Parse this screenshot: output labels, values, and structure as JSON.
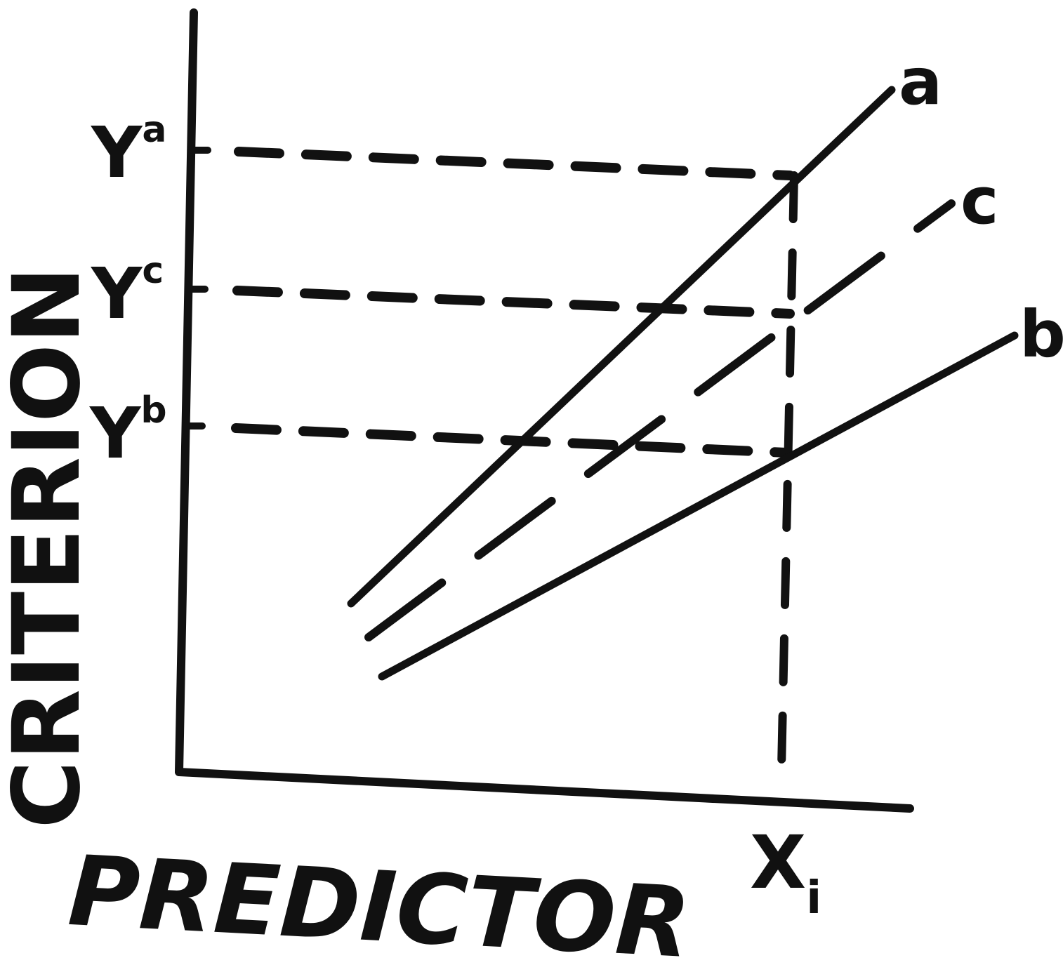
{
  "diagram": {
    "x_axis_label": "PREDICTOR",
    "y_axis_label": "CRITERION",
    "x_tick": {
      "base": "X",
      "sub": "i"
    },
    "y_ticks": [
      {
        "base": "Y",
        "sup": "a"
      },
      {
        "base": "Y",
        "sup": "c"
      },
      {
        "base": "Y",
        "sup": "b"
      }
    ],
    "lines": [
      {
        "label": "a",
        "style": "solid"
      },
      {
        "label": "c",
        "style": "dashed"
      },
      {
        "label": "b",
        "style": "solid"
      }
    ],
    "ink_color": "#111111",
    "background_color": "#ffffff"
  }
}
